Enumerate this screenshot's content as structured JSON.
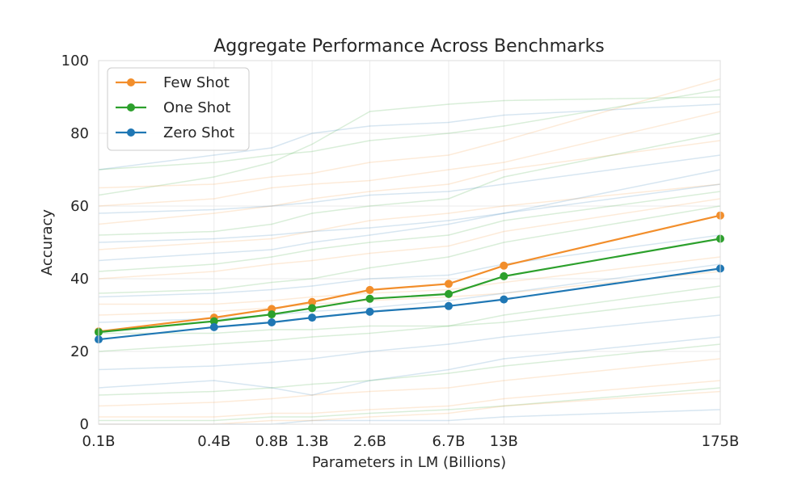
{
  "chart_data": {
    "type": "line",
    "title": "Aggregate Performance Across Benchmarks",
    "xlabel": "Parameters in LM (Billions)",
    "ylabel": "Accuracy",
    "x_scale": "log",
    "x": [
      0.1,
      0.4,
      0.8,
      1.3,
      2.6,
      6.7,
      13,
      175
    ],
    "x_tick_labels": [
      "0.1B",
      "0.4B",
      "0.8B",
      "1.3B",
      "2.6B",
      "6.7B",
      "13B",
      "175B"
    ],
    "ylim": [
      0,
      100
    ],
    "y_ticks": [
      0,
      20,
      40,
      60,
      80,
      100
    ],
    "grid": true,
    "legend_position": "top-left",
    "series": [
      {
        "name": "Few Shot",
        "color": "#f28e2b",
        "values": [
          25.5,
          29.3,
          31.7,
          33.6,
          36.9,
          38.6,
          43.6,
          57.4
        ]
      },
      {
        "name": "One Shot",
        "color": "#2ca02c",
        "values": [
          25.3,
          28.3,
          30.2,
          31.9,
          34.5,
          35.8,
          40.7,
          51.0
        ]
      },
      {
        "name": "Zero Shot",
        "color": "#1f77b4",
        "values": [
          23.3,
          26.7,
          28.0,
          29.3,
          30.9,
          32.5,
          34.3,
          42.8
        ]
      }
    ],
    "background_series": {
      "alpha": 0.18,
      "series": [
        {
          "color": "#f28e2b",
          "values": [
            55,
            58,
            60,
            62,
            64,
            66,
            70,
            78
          ]
        },
        {
          "color": "#2ca02c",
          "values": [
            63,
            68,
            72,
            77,
            86,
            88,
            89,
            90
          ]
        },
        {
          "color": "#1f77b4",
          "values": [
            70,
            74,
            76,
            80,
            82,
            83,
            85,
            88
          ]
        },
        {
          "color": "#f28e2b",
          "values": [
            48,
            50,
            51,
            53,
            56,
            58,
            60,
            66
          ]
        },
        {
          "color": "#2ca02c",
          "values": [
            42,
            44,
            46,
            48,
            50,
            52,
            56,
            64
          ]
        },
        {
          "color": "#1f77b4",
          "values": [
            35,
            36,
            37,
            38,
            40,
            41,
            44,
            52
          ]
        },
        {
          "color": "#f28e2b",
          "values": [
            30,
            31,
            32,
            33,
            34,
            35,
            36,
            42
          ]
        },
        {
          "color": "#2ca02c",
          "values": [
            20,
            22,
            23,
            24,
            25,
            27,
            30,
            38
          ]
        },
        {
          "color": "#1f77b4",
          "values": [
            15,
            16,
            17,
            18,
            20,
            22,
            24,
            30
          ]
        },
        {
          "color": "#f28e2b",
          "values": [
            5,
            6,
            7,
            8,
            9,
            10,
            12,
            18
          ]
        },
        {
          "color": "#2ca02c",
          "values": [
            1,
            1,
            2,
            2,
            3,
            4,
            5,
            10
          ]
        },
        {
          "color": "#1f77b4",
          "values": [
            0,
            0,
            0,
            1,
            1,
            1,
            2,
            4
          ]
        },
        {
          "color": "#f28e2b",
          "values": [
            60,
            62,
            65,
            66,
            67,
            70,
            72,
            86
          ]
        },
        {
          "color": "#2ca02c",
          "values": [
            52,
            53,
            55,
            58,
            60,
            62,
            68,
            80
          ]
        },
        {
          "color": "#1f77b4",
          "values": [
            45,
            47,
            48,
            50,
            52,
            55,
            58,
            70
          ]
        },
        {
          "color": "#f28e2b",
          "values": [
            40,
            42,
            44,
            45,
            47,
            49,
            53,
            62
          ]
        },
        {
          "color": "#2ca02c",
          "values": [
            25,
            25,
            26,
            26,
            27,
            27,
            28,
            35
          ]
        },
        {
          "color": "#1f77b4",
          "values": [
            10,
            12,
            10,
            8,
            12,
            15,
            18,
            24
          ]
        },
        {
          "color": "#f28e2b",
          "values": [
            2,
            2,
            3,
            3,
            4,
            5,
            7,
            12
          ]
        },
        {
          "color": "#2ca02c",
          "values": [
            70,
            72,
            74,
            75,
            78,
            80,
            82,
            92
          ]
        },
        {
          "color": "#1f77b4",
          "values": [
            58,
            59,
            60,
            61,
            63,
            64,
            66,
            74
          ]
        },
        {
          "color": "#f28e2b",
          "values": [
            33,
            33,
            34,
            35,
            36,
            37,
            39,
            46
          ]
        },
        {
          "color": "#2ca02c",
          "values": [
            8,
            9,
            10,
            11,
            12,
            14,
            16,
            22
          ]
        },
        {
          "color": "#1f77b4",
          "values": [
            50,
            51,
            52,
            53,
            54,
            56,
            58,
            66
          ]
        },
        {
          "color": "#f28e2b",
          "values": [
            0,
            0,
            1,
            1,
            2,
            3,
            5,
            9
          ]
        },
        {
          "color": "#2ca02c",
          "values": [
            36,
            37,
            39,
            40,
            43,
            46,
            50,
            60
          ]
        },
        {
          "color": "#1f77b4",
          "values": [
            28,
            29,
            30,
            31,
            32,
            34,
            36,
            44
          ]
        },
        {
          "color": "#f28e2b",
          "values": [
            65,
            66,
            68,
            69,
            72,
            74,
            78,
            95
          ]
        }
      ]
    }
  }
}
